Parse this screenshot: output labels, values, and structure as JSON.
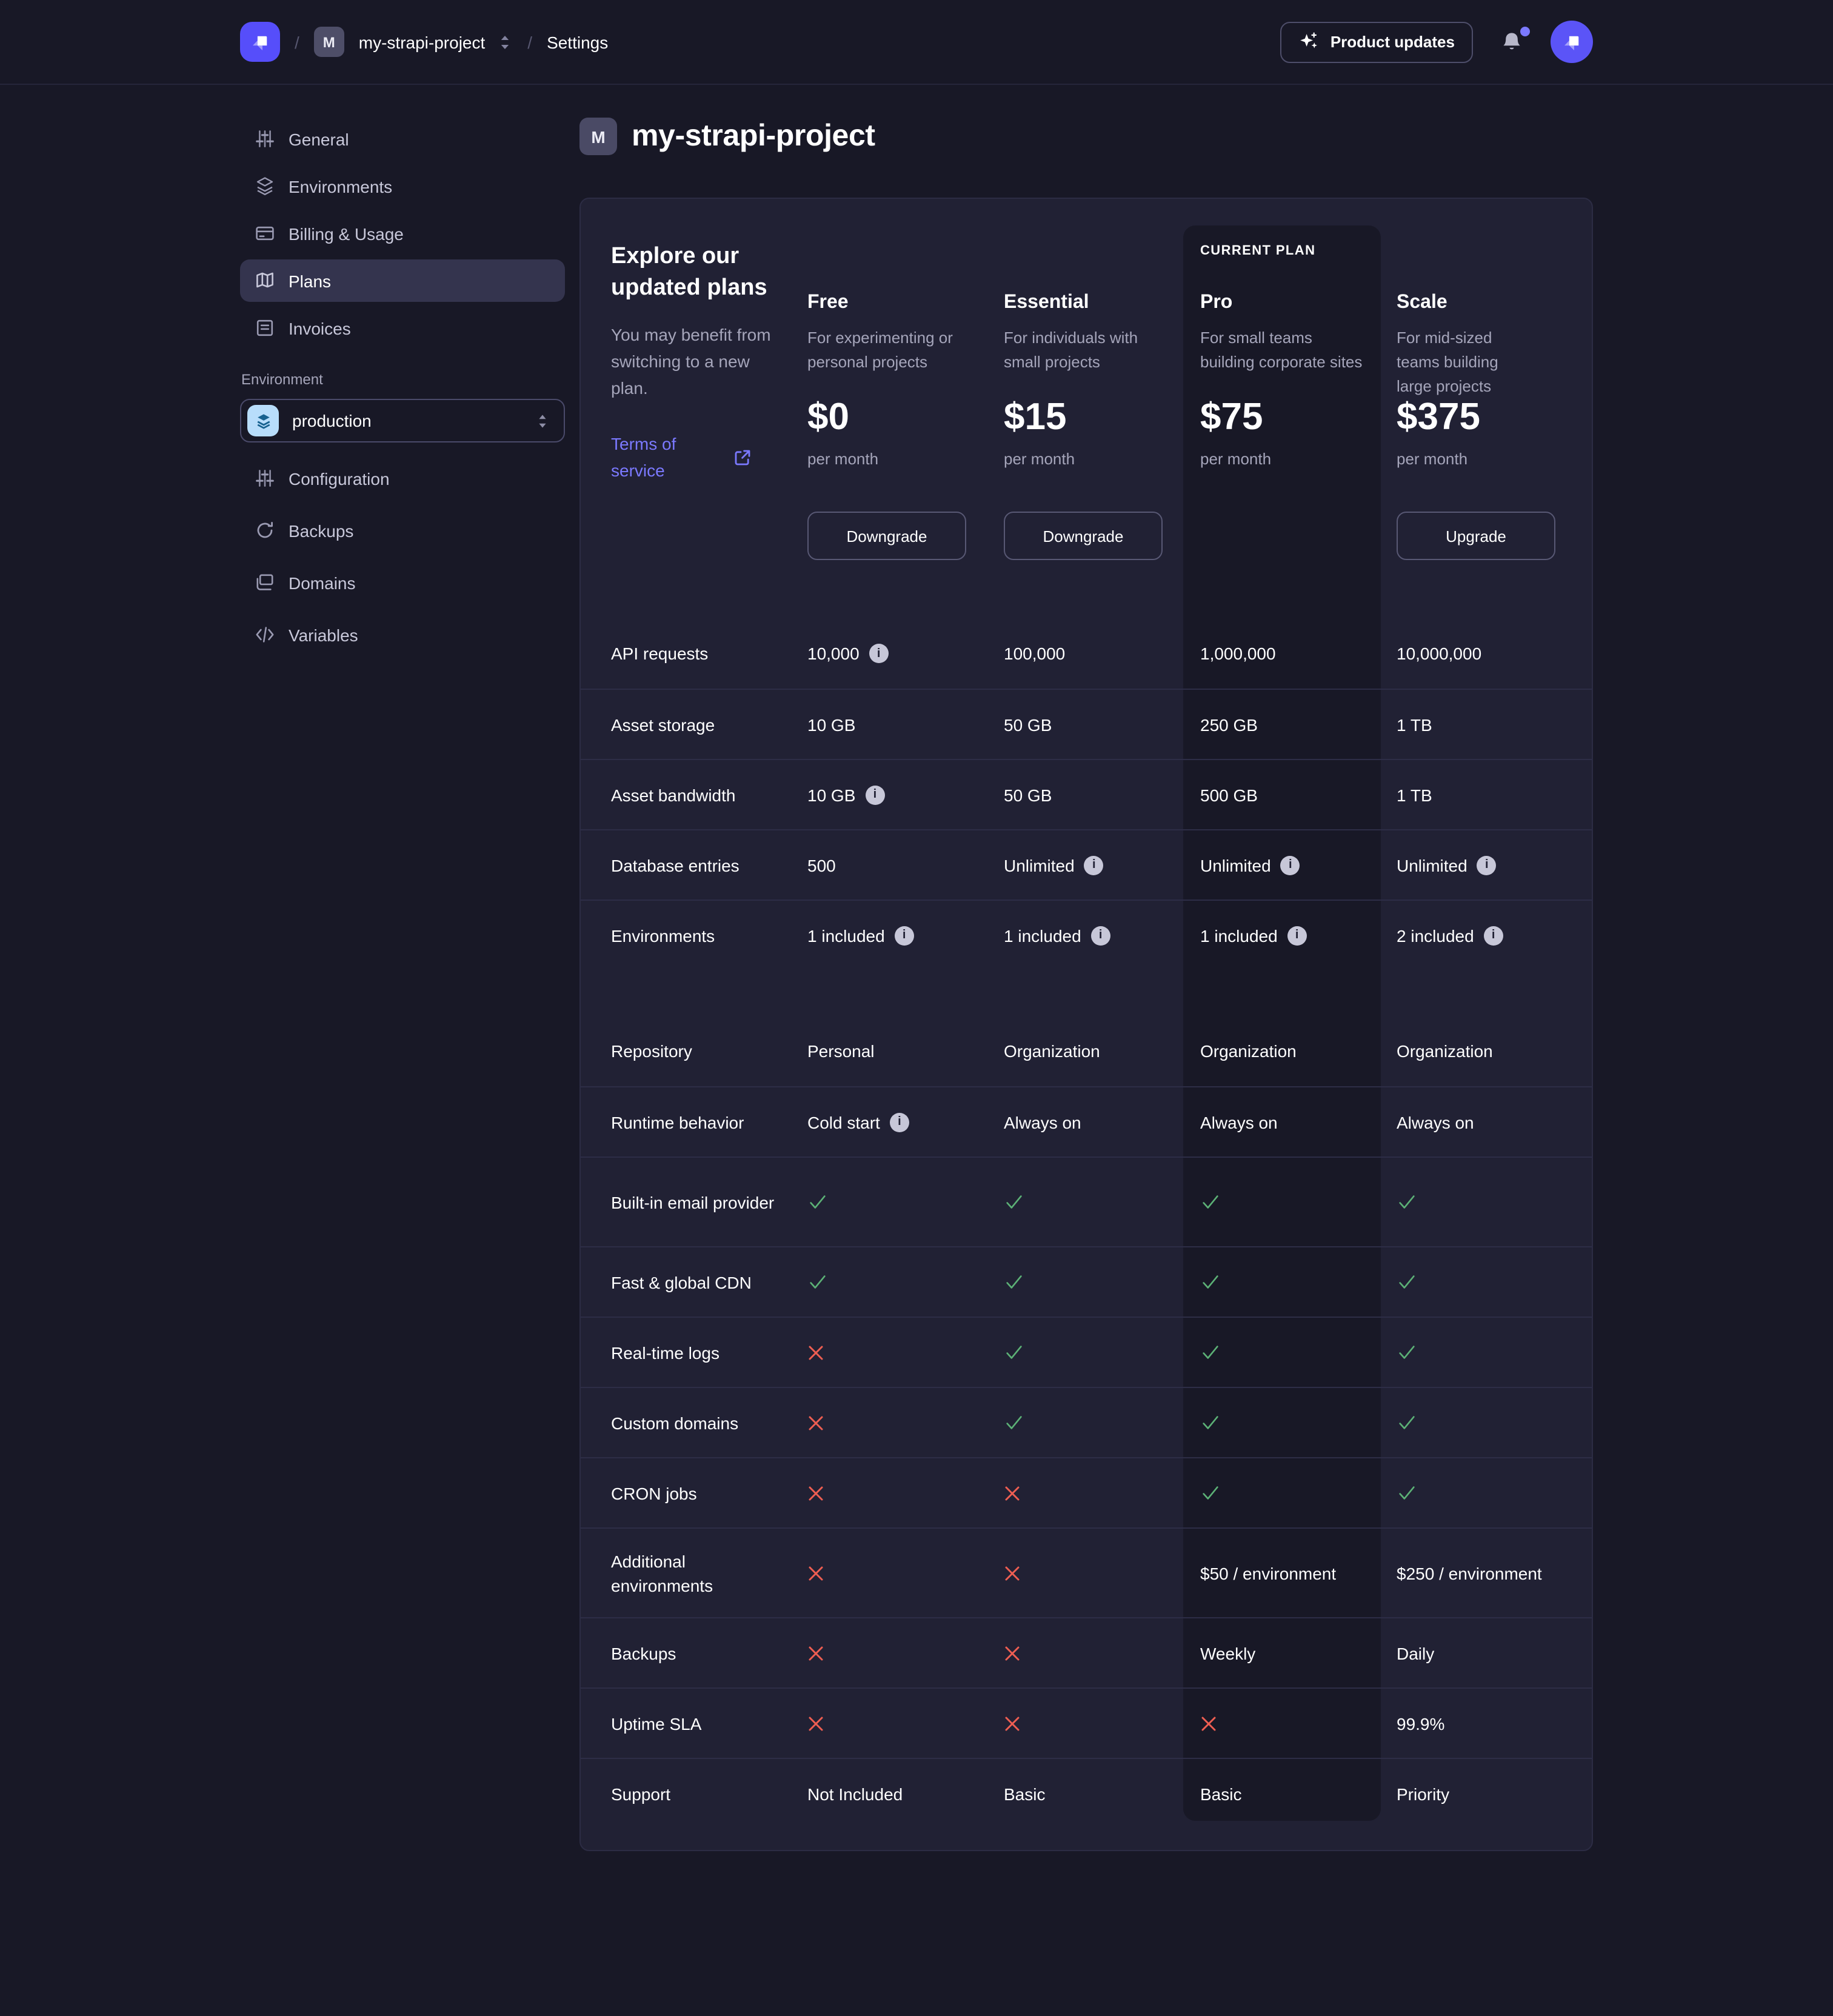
{
  "navbar": {
    "separator": "/",
    "project_badge": "M",
    "project_name": "my-strapi-project",
    "settings": "Settings",
    "product_updates": "Product updates",
    "icons": {
      "logo": "strapi-logo",
      "sparkle": "sparkle-icon",
      "bell": "bell-icon",
      "avatar": "strapi-avatar"
    }
  },
  "sidebar": {
    "items": [
      {
        "label": "General",
        "icon": "sliders-icon",
        "selected": false
      },
      {
        "label": "Environments",
        "icon": "layers-icon",
        "selected": false
      },
      {
        "label": "Billing & Usage",
        "icon": "credit-card-icon",
        "selected": false
      },
      {
        "label": "Plans",
        "icon": "map-icon",
        "selected": true
      },
      {
        "label": "Invoices",
        "icon": "invoice-icon",
        "selected": false
      }
    ],
    "environment_label": "Environment",
    "environment_value": "production",
    "environment_icon": "layers-blue-icon",
    "env_items": [
      {
        "label": "Configuration",
        "icon": "sliders-icon"
      },
      {
        "label": "Backups",
        "icon": "rotate-icon"
      },
      {
        "label": "Domains",
        "icon": "folder-icon"
      },
      {
        "label": "Variables",
        "icon": "code-icon"
      }
    ]
  },
  "page": {
    "badge": "M",
    "title": "my-strapi-project"
  },
  "plans": {
    "intro_title": "Explore our updated plans",
    "intro_subtitle": "You may benefit from switching to a new plan.",
    "terms_link": "Terms of service",
    "current_plan_label": "CURRENT PLAN",
    "columns": [
      {
        "name": "Free",
        "description": "For experimenting or personal projects",
        "price": "$0",
        "period": "per month",
        "button": "Downgrade",
        "current": false
      },
      {
        "name": "Essential",
        "description": "For individuals with small projects",
        "price": "$15",
        "period": "per month",
        "button": "Downgrade",
        "current": false
      },
      {
        "name": "Pro",
        "description": "For small teams building corporate sites",
        "price": "$75",
        "period": "per month",
        "button": null,
        "current": true
      },
      {
        "name": "Scale",
        "description": "For mid-sized teams building large projects",
        "price": "$375",
        "period": "per month",
        "button": "Upgrade",
        "current": false
      }
    ],
    "rows": [
      {
        "label": "API requests",
        "values": [
          {
            "text": "10,000",
            "info": true
          },
          {
            "text": "100,000"
          },
          {
            "text": "1,000,000"
          },
          {
            "text": "10,000,000"
          }
        ]
      },
      {
        "label": "Asset storage",
        "values": [
          {
            "text": "10 GB"
          },
          {
            "text": "50 GB"
          },
          {
            "text": "250 GB"
          },
          {
            "text": "1 TB"
          }
        ]
      },
      {
        "label": "Asset bandwidth",
        "values": [
          {
            "text": "10 GB",
            "info": true
          },
          {
            "text": "50 GB"
          },
          {
            "text": "500 GB"
          },
          {
            "text": "1 TB"
          }
        ]
      },
      {
        "label": "Database entries",
        "values": [
          {
            "text": "500"
          },
          {
            "text": "Unlimited",
            "info": true
          },
          {
            "text": "Unlimited",
            "info": true
          },
          {
            "text": "Unlimited",
            "info": true
          }
        ]
      },
      {
        "label": "Environments",
        "values": [
          {
            "text": "1 included",
            "info": true
          },
          {
            "text": "1 included",
            "info": true
          },
          {
            "text": "1 included",
            "info": true
          },
          {
            "text": "2 included",
            "info": true
          }
        ]
      },
      {
        "spacer": true
      },
      {
        "label": "Repository",
        "values": [
          {
            "text": "Personal"
          },
          {
            "text": "Organization"
          },
          {
            "text": "Organization"
          },
          {
            "text": "Organization"
          }
        ]
      },
      {
        "label": "Runtime behavior",
        "values": [
          {
            "text": "Cold start",
            "info": true
          },
          {
            "text": "Always on"
          },
          {
            "text": "Always on"
          },
          {
            "text": "Always on"
          }
        ]
      },
      {
        "label": "Built-in email provider",
        "values": [
          {
            "mark": "check"
          },
          {
            "mark": "check"
          },
          {
            "mark": "check"
          },
          {
            "mark": "check"
          }
        ]
      },
      {
        "label": "Fast & global CDN",
        "values": [
          {
            "mark": "check"
          },
          {
            "mark": "check"
          },
          {
            "mark": "check"
          },
          {
            "mark": "check"
          }
        ]
      },
      {
        "label": "Real-time logs",
        "values": [
          {
            "mark": "cross"
          },
          {
            "mark": "check"
          },
          {
            "mark": "check"
          },
          {
            "mark": "check"
          }
        ]
      },
      {
        "label": "Custom domains",
        "values": [
          {
            "mark": "cross"
          },
          {
            "mark": "check"
          },
          {
            "mark": "check"
          },
          {
            "mark": "check"
          }
        ]
      },
      {
        "label": "CRON jobs",
        "values": [
          {
            "mark": "cross"
          },
          {
            "mark": "cross"
          },
          {
            "mark": "check"
          },
          {
            "mark": "check"
          }
        ]
      },
      {
        "label": "Additional environments",
        "values": [
          {
            "mark": "cross"
          },
          {
            "mark": "cross"
          },
          {
            "text": "$50 / environment"
          },
          {
            "text": "$250 / environment"
          }
        ]
      },
      {
        "label": "Backups",
        "values": [
          {
            "mark": "cross"
          },
          {
            "mark": "cross"
          },
          {
            "text": "Weekly"
          },
          {
            "text": "Daily"
          }
        ]
      },
      {
        "label": "Uptime SLA",
        "values": [
          {
            "mark": "cross"
          },
          {
            "mark": "cross"
          },
          {
            "mark": "cross"
          },
          {
            "text": "99.9%"
          }
        ]
      },
      {
        "label": "Support",
        "values": [
          {
            "text": "Not Included"
          },
          {
            "text": "Basic"
          },
          {
            "text": "Basic"
          },
          {
            "text": "Priority"
          }
        ]
      }
    ]
  },
  "colors": {
    "page_bg": "#181826",
    "card_bg": "#212134",
    "panel_bg": "#181826",
    "accent": "#4945ff",
    "link": "#7b79ff",
    "success": "#5cb176",
    "danger": "#ee5e52"
  }
}
